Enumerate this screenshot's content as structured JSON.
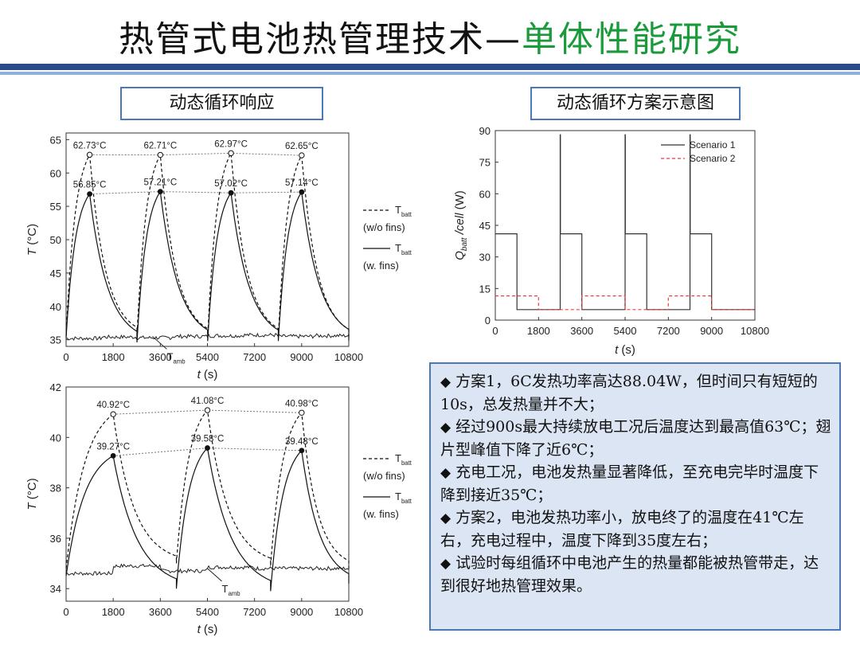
{
  "title": {
    "main": "热管式电池热管理技术",
    "separator": "—",
    "sub": "单体性能研究"
  },
  "colors": {
    "title_sub": "#1a9a3a",
    "rule_dark": "#2b4a8a",
    "rule_light": "#8fb0dc",
    "box_border": "#4a78b8",
    "note_bg": "#dbe5f3",
    "scenario2": "#e8423a"
  },
  "panels": {
    "left_label": "动态循环响应",
    "right_label": "动态循环方案示意图"
  },
  "chart_data": [
    {
      "type": "line",
      "x": [
        0,
        900,
        2700,
        3600,
        5400,
        6300,
        8100,
        9000,
        10800
      ],
      "xlabel": "t (s)",
      "ylabel": "T (°C)",
      "xlim": [
        0,
        10800
      ],
      "ylim": [
        34,
        66
      ],
      "xticks": [
        "0",
        "1800",
        "3600",
        "5400",
        "7200",
        "9000",
        "10800"
      ],
      "yticks": [
        "35",
        "40",
        "45",
        "50",
        "55",
        "60",
        "65"
      ],
      "series": [
        {
          "name": "Tbatt (w/o fins)",
          "style": "dashed",
          "values": [
            35.5,
            62.73,
            35.5,
            62.71,
            35.3,
            62.97,
            35.3,
            62.65,
            35.2
          ]
        },
        {
          "name": "Tbatt (w. fins)",
          "style": "solid",
          "values": [
            35.3,
            56.85,
            34.6,
            57.21,
            34.8,
            57.02,
            34.8,
            57.14,
            34.9
          ]
        },
        {
          "name": "Tamb",
          "style": "solid",
          "values": [
            35.2,
            35.4,
            35.3,
            35.5,
            35.6,
            35.7,
            35.5,
            35.6,
            35.5
          ]
        }
      ],
      "peaks_wo_fins": [
        {
          "x": 900,
          "y": 62.73,
          "label": "62.73°C"
        },
        {
          "x": 3600,
          "y": 62.71,
          "label": "62.71°C"
        },
        {
          "x": 6300,
          "y": 62.97,
          "label": "62.97°C"
        },
        {
          "x": 9000,
          "y": 62.65,
          "label": "62.65°C"
        }
      ],
      "peaks_w_fins": [
        {
          "x": 900,
          "y": 56.85,
          "label": "56.85°C"
        },
        {
          "x": 3600,
          "y": 57.21,
          "label": "57.21°C"
        },
        {
          "x": 6300,
          "y": 57.02,
          "label": "57.02°C"
        },
        {
          "x": 9000,
          "y": 57.14,
          "label": "57.14°C"
        }
      ],
      "legend": [
        {
          "main": "T",
          "sub": "batt",
          "note": "(w/o fins)",
          "style": "dashed"
        },
        {
          "main": "T",
          "sub": "batt",
          "note": "(w. fins)",
          "style": "solid"
        }
      ],
      "annotation": {
        "main": "T",
        "sub": "amb",
        "x": 3300,
        "y": 35.5
      },
      "legend_position": "right-outside",
      "grid": false
    },
    {
      "type": "line",
      "x": [
        0,
        1800,
        3600,
        5400,
        7200,
        9000,
        10800
      ],
      "xlabel": "t (s)",
      "ylabel": "T (°C)",
      "xlim": [
        0,
        10800
      ],
      "ylim": [
        33.5,
        42
      ],
      "xticks": [
        "0",
        "1800",
        "3600",
        "5400",
        "7200",
        "9000",
        "10800"
      ],
      "yticks": [
        "34",
        "36",
        "38",
        "40",
        "42"
      ],
      "series": [
        {
          "name": "Tbatt (w/o fins)",
          "style": "dashed",
          "values": [
            34.8,
            40.92,
            35.0,
            41.08,
            34.9,
            40.98,
            34.8
          ]
        },
        {
          "name": "Tbatt (w. fins)",
          "style": "solid",
          "values": [
            34.5,
            39.27,
            34.0,
            39.58,
            33.9,
            39.48,
            34.2
          ]
        },
        {
          "name": "Tamb",
          "style": "solid",
          "values": [
            34.6,
            34.9,
            34.7,
            34.85,
            34.8,
            34.8,
            34.7
          ]
        }
      ],
      "peaks_wo_fins": [
        {
          "x": 1800,
          "y": 40.92,
          "label": "40.92°C"
        },
        {
          "x": 5400,
          "y": 41.08,
          "label": "41.08°C"
        },
        {
          "x": 9000,
          "y": 40.98,
          "label": "40.98°C"
        }
      ],
      "peaks_w_fins": [
        {
          "x": 1800,
          "y": 39.27,
          "label": "39.27°C"
        },
        {
          "x": 5400,
          "y": 39.58,
          "label": "39.58°C"
        },
        {
          "x": 9000,
          "y": 39.48,
          "label": "39.48°C"
        }
      ],
      "legend": [
        {
          "main": "T",
          "sub": "batt",
          "note": "(w/o fins)",
          "style": "dashed"
        },
        {
          "main": "T",
          "sub": "batt",
          "note": "(w. fins)",
          "style": "solid"
        }
      ],
      "annotation": {
        "main": "T",
        "sub": "amb",
        "x": 5400,
        "y": 34.8
      },
      "legend_position": "right-outside",
      "grid": false
    },
    {
      "type": "line",
      "xlabel": "t (s)",
      "ylabel": "Q_batt / cell (W)",
      "xlim": [
        0,
        10800
      ],
      "ylim": [
        0,
        90
      ],
      "xticks": [
        "0",
        "1800",
        "3600",
        "5400",
        "7200",
        "9000",
        "10800"
      ],
      "yticks": [
        "0",
        "15",
        "30",
        "45",
        "60",
        "75",
        "90"
      ],
      "series": [
        {
          "name": "Scenario 1",
          "style": "solid",
          "x": [
            0,
            900,
            900,
            2700,
            2700,
            2710,
            2710,
            3600,
            3600,
            5400,
            5400,
            5410,
            5410,
            6300,
            6300,
            8100,
            8100,
            8110,
            8110,
            9000,
            9000,
            10800
          ],
          "values": [
            41,
            41,
            5,
            5,
            88.04,
            88.04,
            41,
            41,
            5,
            5,
            88.04,
            88.04,
            41,
            41,
            5,
            5,
            88.04,
            88.04,
            41,
            41,
            5,
            5
          ]
        },
        {
          "name": "Scenario 2",
          "style": "dashed",
          "x": [
            0,
            1800,
            1800,
            3600,
            3600,
            5400,
            5400,
            7200,
            7200,
            9000,
            9000,
            10800
          ],
          "values": [
            11.5,
            11.5,
            5,
            5,
            11.5,
            11.5,
            5,
            5,
            11.5,
            11.5,
            5,
            5
          ]
        }
      ],
      "legend_position": "top-right",
      "grid": false
    }
  ],
  "notes": [
    "方案1，6C发热功率高达88.04W，但时间只有短短的10s，总发热量并不大；",
    "经过900s最大持续放电工况后温度达到最高值63℃；翅片型峰值下降了近6℃；",
    "充电工况，电池发热量显著降低，至充电完毕时温度下降到接近35℃；",
    "方案2，电池发热功率小，放电终了的温度在41℃左右，充电过程中，温度下降到35度左右；",
    "试验时每组循环中电池产生的热量都能被热管带走，达到很好地热管理效果。"
  ],
  "bullet_symbol": "◆"
}
